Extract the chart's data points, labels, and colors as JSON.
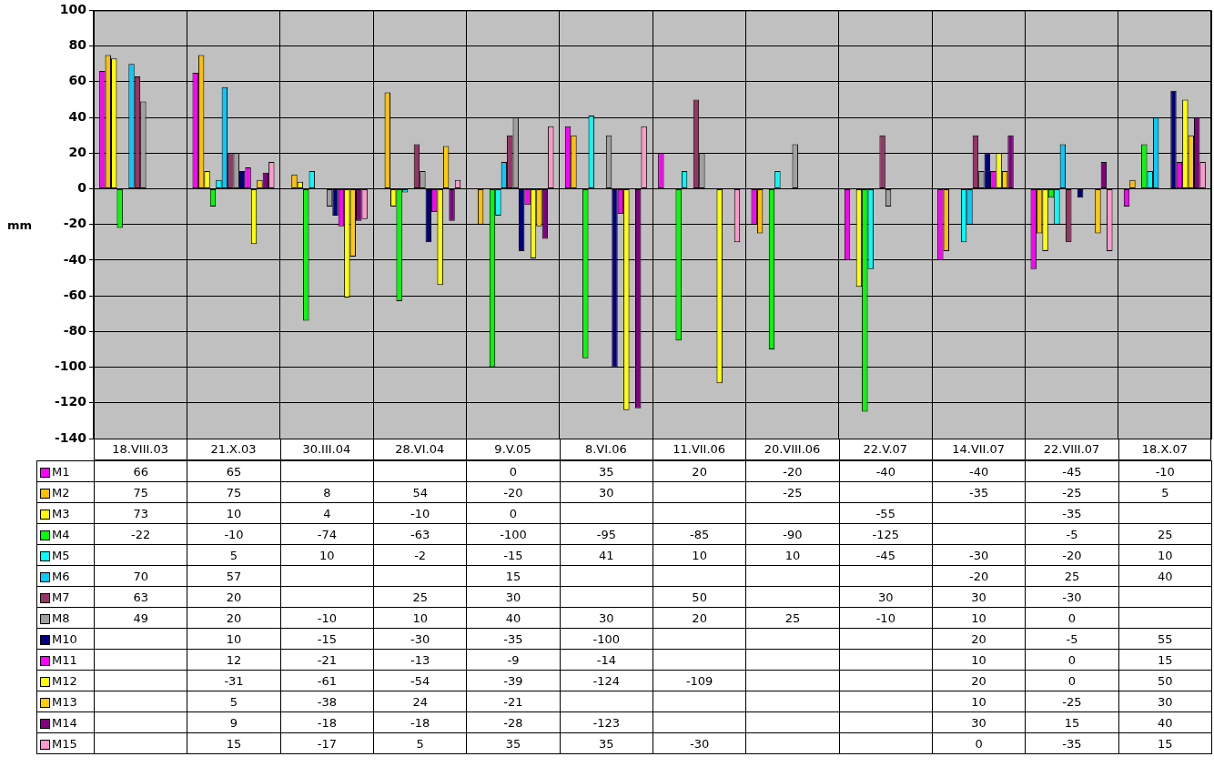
{
  "chart_data": {
    "type": "bar",
    "ylabel": "mm",
    "categories": [
      "18.VIII.03",
      "21.X.03",
      "30.III.04",
      "28.VI.04",
      "9.V.05",
      "8.VI.06",
      "11.VII.06",
      "20.VIII.06",
      "22.V.07",
      "14.VII.07",
      "22.VIII.07",
      "18.X.07"
    ],
    "ylim": [
      -140,
      100
    ],
    "yticks": [
      -140,
      -120,
      -100,
      -80,
      -60,
      -40,
      -20,
      0,
      20,
      40,
      60,
      80,
      100
    ],
    "grid": true,
    "legend": "bottom",
    "data_labels": true,
    "series": [
      {
        "name": "M1",
        "color": "#ff00ff",
        "values": [
          66,
          65,
          null,
          null,
          0,
          35,
          20,
          -20,
          -40,
          -40,
          -45,
          -10
        ]
      },
      {
        "name": "M2",
        "color": "#ffc000",
        "values": [
          75,
          75,
          8,
          54,
          -20,
          30,
          null,
          -25,
          null,
          -35,
          -25,
          5
        ]
      },
      {
        "name": "M3",
        "color": "#ffff00",
        "values": [
          73,
          10,
          4,
          -10,
          0,
          null,
          null,
          null,
          -55,
          null,
          -35,
          null
        ]
      },
      {
        "name": "M4",
        "color": "#00ff00",
        "values": [
          -22,
          -10,
          -74,
          -63,
          -100,
          -95,
          -85,
          -90,
          -125,
          null,
          -5,
          25
        ]
      },
      {
        "name": "M5",
        "color": "#00ffff",
        "values": [
          null,
          5,
          10,
          -2,
          -15,
          41,
          10,
          10,
          -45,
          -30,
          -20,
          10
        ]
      },
      {
        "name": "M6",
        "color": "#00ccff",
        "values": [
          70,
          57,
          null,
          null,
          15,
          null,
          null,
          null,
          null,
          -20,
          25,
          40
        ]
      },
      {
        "name": "M7",
        "color": "#993366",
        "values": [
          63,
          20,
          null,
          25,
          30,
          null,
          50,
          null,
          30,
          30,
          -30,
          null
        ]
      },
      {
        "name": "M8",
        "color": "#a0a0a0",
        "values": [
          49,
          20,
          -10,
          10,
          40,
          30,
          20,
          25,
          -10,
          10,
          0,
          null
        ]
      },
      {
        "name": "M10",
        "color": "#000080",
        "values": [
          null,
          10,
          -15,
          -30,
          -35,
          -100,
          null,
          null,
          null,
          20,
          -5,
          55
        ]
      },
      {
        "name": "M11",
        "color": "#ff00ff",
        "values": [
          null,
          12,
          -21,
          -13,
          -9,
          -14,
          null,
          null,
          null,
          10,
          0,
          15
        ]
      },
      {
        "name": "M12",
        "color": "#ffff00",
        "values": [
          null,
          -31,
          -61,
          -54,
          -39,
          -124,
          -109,
          null,
          null,
          20,
          0,
          50
        ]
      },
      {
        "name": "M13",
        "color": "#ffcc00",
        "values": [
          null,
          5,
          -38,
          24,
          -21,
          null,
          null,
          null,
          null,
          10,
          -25,
          30
        ]
      },
      {
        "name": "M14",
        "color": "#800080",
        "values": [
          null,
          9,
          -18,
          -18,
          -28,
          -123,
          null,
          null,
          null,
          30,
          15,
          40
        ]
      },
      {
        "name": "M15",
        "color": "#ff99cc",
        "values": [
          null,
          15,
          -17,
          5,
          35,
          35,
          -30,
          null,
          null,
          0,
          -35,
          15
        ]
      }
    ]
  }
}
